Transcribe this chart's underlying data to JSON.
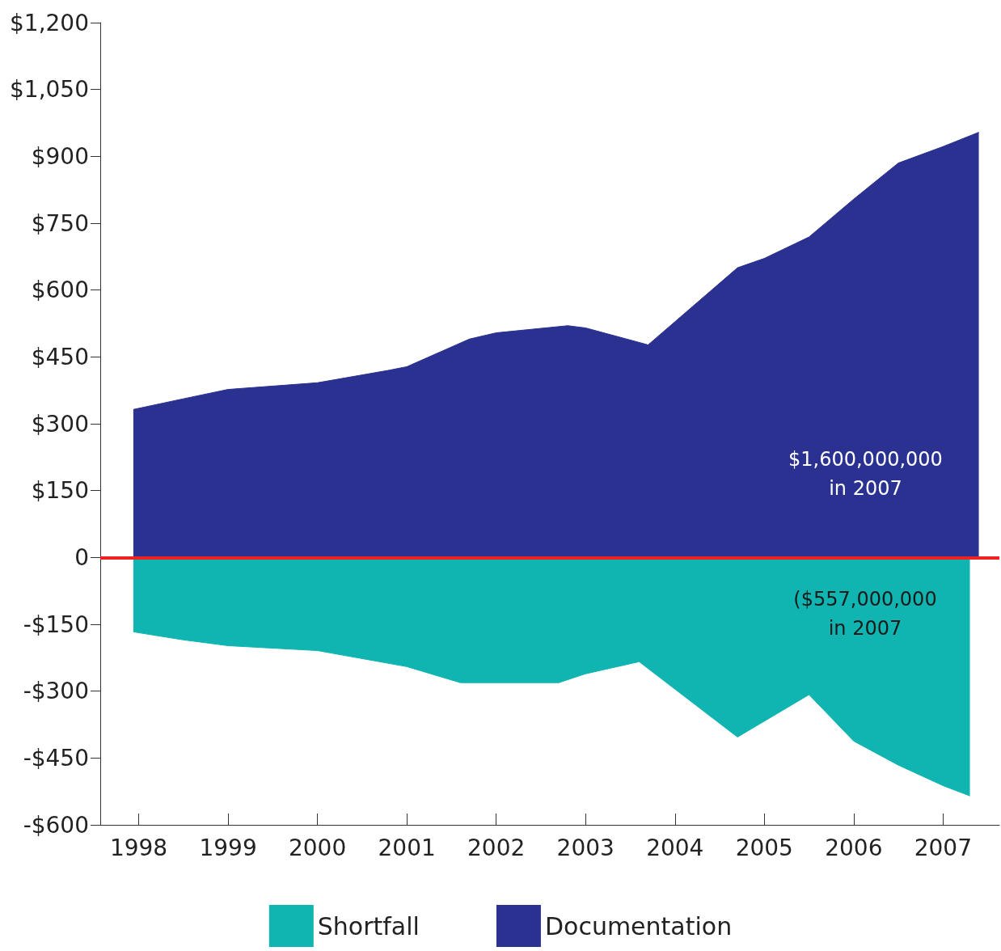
{
  "chart_data": {
    "type": "area",
    "xlim": [
      1997.57,
      2007.63
    ],
    "xticks": [
      1998,
      1999,
      2000,
      2001,
      2002,
      2003,
      2004,
      2005,
      2006,
      2007
    ],
    "ylim": [
      -600,
      1200
    ],
    "yticks": [
      {
        "value": -600,
        "label": "-$600"
      },
      {
        "value": -450,
        "label": "-$450"
      },
      {
        "value": -300,
        "label": "-$300"
      },
      {
        "value": -150,
        "label": "-$150"
      },
      0,
      {
        "value": 150,
        "label": "$150"
      },
      {
        "value": 300,
        "label": "$300"
      },
      {
        "value": 450,
        "label": "$450"
      },
      {
        "value": 600,
        "label": "$600"
      },
      {
        "value": 750,
        "label": "$750"
      },
      {
        "value": 900,
        "label": "$900"
      },
      {
        "value": 1050,
        "label": "$1,050"
      },
      {
        "value": 1200,
        "label": "$1,200"
      }
    ],
    "series": [
      {
        "name": "Shortfall",
        "color": "#10b5b1",
        "x": [
          1997.94,
          1998.5,
          1999,
          2000,
          2001,
          2001.6,
          2002.7,
          2003,
          2003.6,
          2004.7,
          2005.5,
          2006,
          2006.5,
          2007,
          2007.3
        ],
        "values": [
          -167,
          -185,
          -198,
          -209,
          -245,
          -281,
          -281,
          -261,
          -234,
          -403,
          -308,
          -412,
          -466,
          -512,
          -535
        ]
      },
      {
        "name": "Documentation",
        "color": "#2b3190",
        "x": [
          1997.94,
          1998.5,
          1999,
          2000,
          2000.8,
          2001,
          2001.7,
          2002,
          2002.8,
          2003,
          2003.7,
          2004.7,
          2005,
          2005.5,
          2006,
          2006.5,
          2007,
          2007.4
        ],
        "values": [
          332,
          356,
          377,
          392,
          420,
          428,
          490,
          504,
          520,
          515,
          477,
          650,
          671,
          719,
          804,
          885,
          922,
          954
        ]
      }
    ],
    "ref_lines": [
      {
        "axis": "y",
        "value": 0,
        "color": "#ee2222"
      }
    ],
    "annotations": [
      "$1,600,000,000\nin 2007",
      "($557,000,000\nin 2007"
    ],
    "legend": "bottom",
    "grid": false,
    "marker": "none"
  }
}
